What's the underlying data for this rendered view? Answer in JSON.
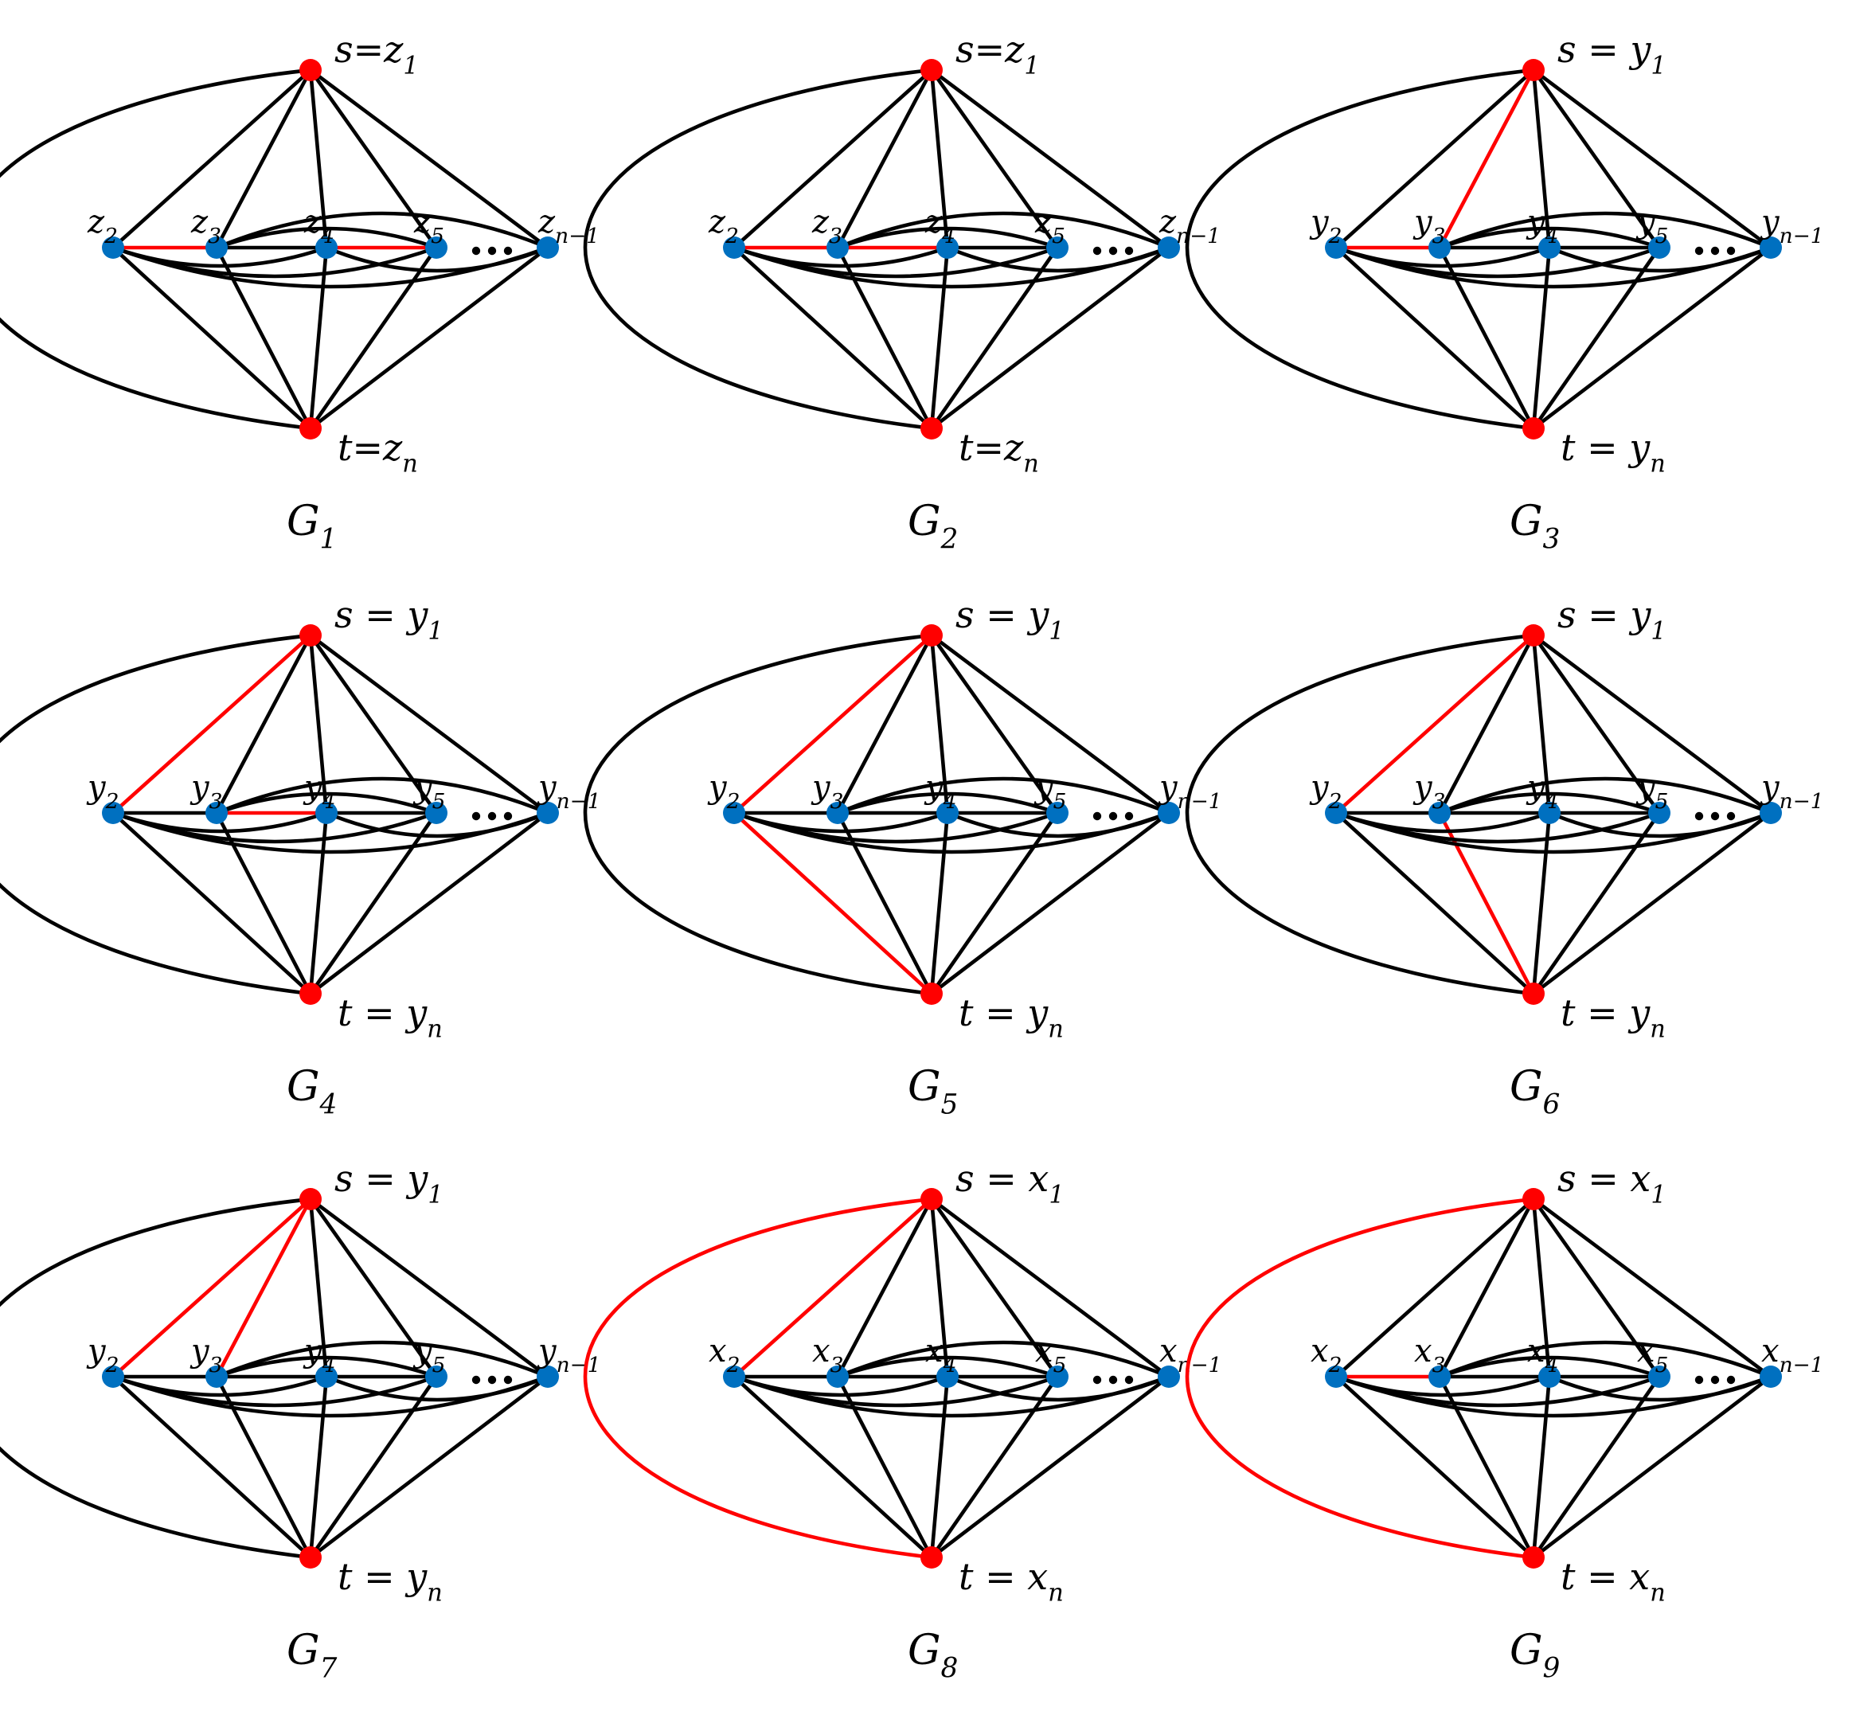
{
  "colors": {
    "terminal_node": "#ff0000",
    "inner_node": "#0070c0",
    "edge": "#000000",
    "highlight_edge": "#ff0000",
    "background": "#ffffff"
  },
  "panels": [
    {
      "caption": "G",
      "caption_sub": "1",
      "labels": {
        "s": {
          "main": "s=z",
          "sub": "1"
        },
        "t": {
          "main": "t=z",
          "sub": "n"
        },
        "v2": {
          "main": "z",
          "sub": "2"
        },
        "v3": {
          "main": "z",
          "sub": "3"
        },
        "v4": {
          "main": "z",
          "sub": "4"
        },
        "v5": {
          "main": "z",
          "sub": "5"
        },
        "vn1": {
          "main": "z",
          "sub": "n−1"
        }
      },
      "red_edges": [
        "v2-v3",
        "v4-v5"
      ]
    },
    {
      "caption": "G",
      "caption_sub": "2",
      "labels": {
        "s": {
          "main": "s=z",
          "sub": "1"
        },
        "t": {
          "main": "t=z",
          "sub": "n"
        },
        "v2": {
          "main": "z",
          "sub": "2"
        },
        "v3": {
          "main": "z",
          "sub": "3"
        },
        "v4": {
          "main": "z",
          "sub": "4"
        },
        "v5": {
          "main": "z",
          "sub": "5"
        },
        "vn1": {
          "main": "z",
          "sub": "n−1"
        }
      },
      "red_edges": [
        "v2-v3",
        "v3-v4"
      ]
    },
    {
      "caption": "G",
      "caption_sub": "3",
      "labels": {
        "s": {
          "main": "s = y",
          "sub": "1"
        },
        "t": {
          "main": "t = y",
          "sub": "n"
        },
        "v2": {
          "main": "y",
          "sub": "2"
        },
        "v3": {
          "main": "y",
          "sub": "3"
        },
        "v4": {
          "main": "y",
          "sub": "4"
        },
        "v5": {
          "main": "y",
          "sub": "5"
        },
        "vn1": {
          "main": "y",
          "sub": "n−1"
        }
      },
      "red_edges": [
        "v2-v3",
        "s-v3"
      ]
    },
    {
      "caption": "G",
      "caption_sub": "4",
      "labels": {
        "s": {
          "main": "s = y",
          "sub": "1"
        },
        "t": {
          "main": "t = y",
          "sub": "n"
        },
        "v2": {
          "main": "y",
          "sub": "2"
        },
        "v3": {
          "main": "y",
          "sub": "3"
        },
        "v4": {
          "main": "y",
          "sub": "4"
        },
        "v5": {
          "main": "y",
          "sub": "5"
        },
        "vn1": {
          "main": "y",
          "sub": "n−1"
        }
      },
      "red_edges": [
        "s-v2",
        "v3-v4"
      ]
    },
    {
      "caption": "G",
      "caption_sub": "5",
      "labels": {
        "s": {
          "main": "s = y",
          "sub": "1"
        },
        "t": {
          "main": "t = y",
          "sub": "n"
        },
        "v2": {
          "main": "y",
          "sub": "2"
        },
        "v3": {
          "main": "y",
          "sub": "3"
        },
        "v4": {
          "main": "y",
          "sub": "4"
        },
        "v5": {
          "main": "y",
          "sub": "5"
        },
        "vn1": {
          "main": "y",
          "sub": "n−1"
        }
      },
      "red_edges": [
        "s-v2",
        "t-v2"
      ]
    },
    {
      "caption": "G",
      "caption_sub": "6",
      "labels": {
        "s": {
          "main": "s = y",
          "sub": "1"
        },
        "t": {
          "main": "t = y",
          "sub": "n"
        },
        "v2": {
          "main": "y",
          "sub": "2"
        },
        "v3": {
          "main": "y",
          "sub": "3"
        },
        "v4": {
          "main": "y",
          "sub": "4"
        },
        "v5": {
          "main": "y",
          "sub": "5"
        },
        "vn1": {
          "main": "y",
          "sub": "n−1"
        }
      },
      "red_edges": [
        "s-v2",
        "t-v3"
      ]
    },
    {
      "caption": "G",
      "caption_sub": "7",
      "labels": {
        "s": {
          "main": "s = y",
          "sub": "1"
        },
        "t": {
          "main": "t = y",
          "sub": "n"
        },
        "v2": {
          "main": "y",
          "sub": "2"
        },
        "v3": {
          "main": "y",
          "sub": "3"
        },
        "v4": {
          "main": "y",
          "sub": "4"
        },
        "v5": {
          "main": "y",
          "sub": "5"
        },
        "vn1": {
          "main": "y",
          "sub": "n−1"
        }
      },
      "red_edges": [
        "s-v2",
        "s-v3"
      ]
    },
    {
      "caption": "G",
      "caption_sub": "8",
      "labels": {
        "s": {
          "main": "s = x",
          "sub": "1"
        },
        "t": {
          "main": "t = x",
          "sub": "n"
        },
        "v2": {
          "main": "x",
          "sub": "2"
        },
        "v3": {
          "main": "x",
          "sub": "3"
        },
        "v4": {
          "main": "x",
          "sub": "4"
        },
        "v5": {
          "main": "x",
          "sub": "5"
        },
        "vn1": {
          "main": "x",
          "sub": "n−1"
        }
      },
      "red_edges": [
        "s-v2",
        "s-t"
      ]
    },
    {
      "caption": "G",
      "caption_sub": "9",
      "labels": {
        "s": {
          "main": "s = x",
          "sub": "1"
        },
        "t": {
          "main": "t = x",
          "sub": "n"
        },
        "v2": {
          "main": "x",
          "sub": "2"
        },
        "v3": {
          "main": "x",
          "sub": "3"
        },
        "v4": {
          "main": "x",
          "sub": "4"
        },
        "v5": {
          "main": "x",
          "sub": "5"
        },
        "vn1": {
          "main": "x",
          "sub": "n−1"
        }
      },
      "red_edges": [
        "v2-v3",
        "s-t"
      ]
    }
  ]
}
